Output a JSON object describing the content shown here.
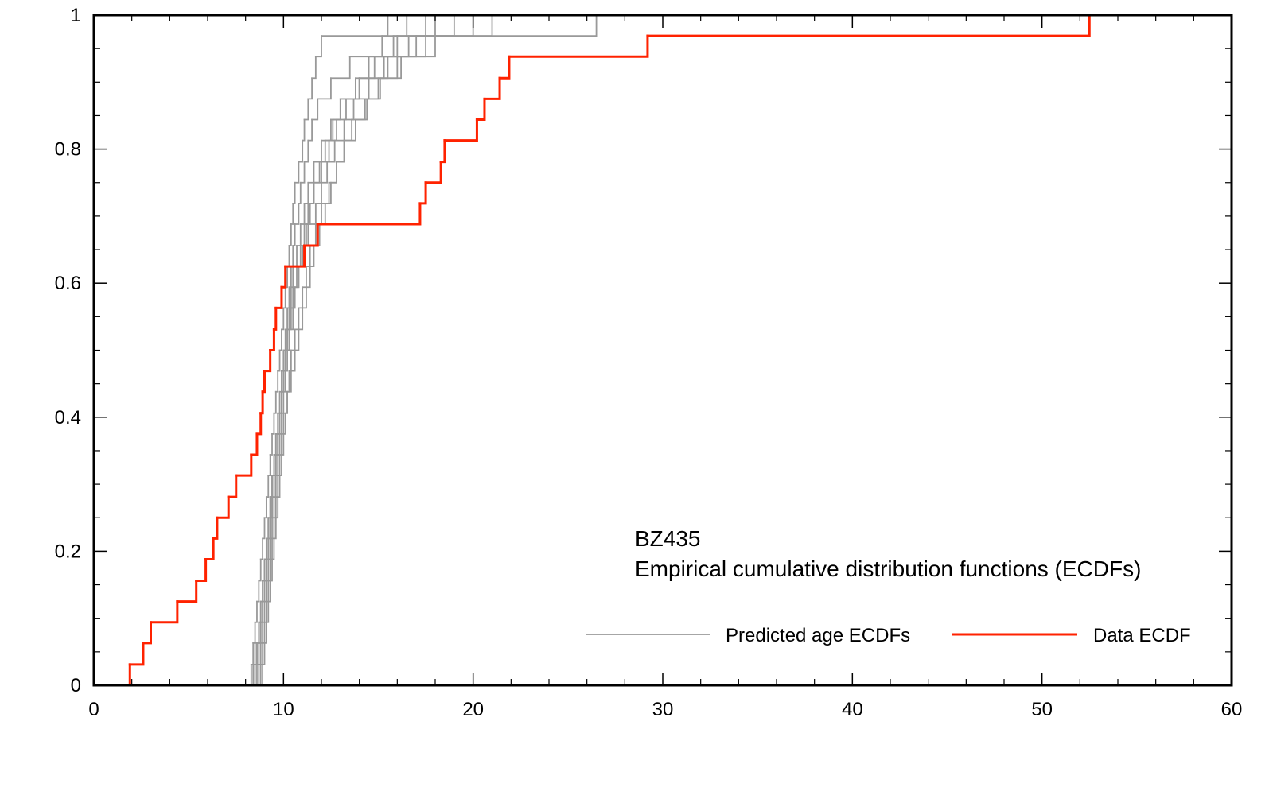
{
  "chart_data": {
    "type": "ecdf",
    "annotations": [
      "BZ435",
      "Empirical cumulative distribution functions (ECDFs)"
    ],
    "xlim": [
      0,
      60
    ],
    "xticks": [
      0,
      10,
      20,
      30,
      40,
      50,
      60
    ],
    "ylim": [
      0,
      1
    ],
    "yticks": [
      0,
      0.2,
      0.4,
      0.6,
      0.8,
      1
    ],
    "minor_ticks": {
      "x": 5,
      "y": 4
    },
    "legend": "lower right",
    "series": [
      {
        "name": "Predicted age ECDFs",
        "color": "#999999",
        "curves": [
          {
            "x": [
              8.3,
              8.4,
              8.5,
              8.6,
              8.7,
              8.8,
              8.9,
              9.0,
              9.1,
              9.2,
              9.3,
              9.4,
              9.5,
              9.6,
              9.7,
              9.8,
              9.9,
              10.0,
              10.1,
              10.2,
              10.3,
              10.4,
              10.5,
              10.6,
              10.8,
              11.0,
              11.1,
              11.3,
              11.5,
              11.7,
              12.0,
              15.5
            ],
            "values": [
              0.031,
              0.063,
              0.094,
              0.125,
              0.156,
              0.188,
              0.219,
              0.25,
              0.281,
              0.313,
              0.344,
              0.375,
              0.406,
              0.438,
              0.469,
              0.5,
              0.531,
              0.563,
              0.594,
              0.625,
              0.656,
              0.688,
              0.719,
              0.75,
              0.781,
              0.813,
              0.844,
              0.875,
              0.906,
              0.938,
              0.969,
              1
            ]
          },
          {
            "x": [
              8.4,
              8.5,
              8.7,
              8.8,
              8.9,
              9.0,
              9.1,
              9.2,
              9.3,
              9.4,
              9.5,
              9.6,
              9.7,
              9.8,
              9.9,
              10.0,
              10.1,
              10.2,
              10.3,
              10.4,
              10.5,
              10.6,
              10.8,
              10.9,
              11.1,
              11.3,
              11.5,
              11.8,
              12.5,
              13.5,
              15.2,
              16.5
            ],
            "values": [
              0.031,
              0.063,
              0.094,
              0.125,
              0.156,
              0.188,
              0.219,
              0.25,
              0.281,
              0.313,
              0.344,
              0.375,
              0.406,
              0.438,
              0.469,
              0.5,
              0.531,
              0.563,
              0.594,
              0.625,
              0.656,
              0.688,
              0.719,
              0.75,
              0.781,
              0.813,
              0.844,
              0.875,
              0.906,
              0.938,
              0.969,
              1
            ]
          },
          {
            "x": [
              8.5,
              8.6,
              8.7,
              8.8,
              8.9,
              9.0,
              9.1,
              9.2,
              9.3,
              9.4,
              9.5,
              9.6,
              9.8,
              9.9,
              10.0,
              10.1,
              10.3,
              10.4,
              10.6,
              10.8,
              11.0,
              11.2,
              11.4,
              11.6,
              11.9,
              12.2,
              12.6,
              13.0,
              13.8,
              14.5,
              16.0,
              19.0
            ],
            "values": [
              0.031,
              0.063,
              0.094,
              0.125,
              0.156,
              0.188,
              0.219,
              0.25,
              0.281,
              0.313,
              0.344,
              0.375,
              0.406,
              0.438,
              0.469,
              0.5,
              0.531,
              0.563,
              0.594,
              0.625,
              0.656,
              0.688,
              0.719,
              0.75,
              0.781,
              0.813,
              0.844,
              0.875,
              0.906,
              0.938,
              0.969,
              1
            ]
          },
          {
            "x": [
              8.6,
              8.7,
              8.8,
              8.9,
              9.0,
              9.1,
              9.2,
              9.3,
              9.4,
              9.5,
              9.6,
              9.7,
              9.8,
              9.9,
              10.0,
              10.1,
              10.2,
              10.3,
              10.5,
              10.7,
              10.9,
              11.1,
              11.3,
              11.6,
              12.0,
              12.4,
              12.8,
              13.3,
              14.0,
              14.8,
              15.8,
              17.5
            ],
            "values": [
              0.031,
              0.063,
              0.094,
              0.125,
              0.156,
              0.188,
              0.219,
              0.25,
              0.281,
              0.313,
              0.344,
              0.375,
              0.406,
              0.438,
              0.469,
              0.5,
              0.531,
              0.563,
              0.594,
              0.625,
              0.656,
              0.688,
              0.719,
              0.75,
              0.781,
              0.813,
              0.844,
              0.875,
              0.906,
              0.938,
              0.969,
              1
            ]
          },
          {
            "x": [
              8.7,
              8.8,
              8.9,
              9.0,
              9.1,
              9.2,
              9.3,
              9.4,
              9.5,
              9.6,
              9.7,
              9.8,
              9.9,
              10.0,
              10.1,
              10.2,
              10.3,
              10.5,
              10.6,
              10.8,
              11.0,
              11.3,
              11.7,
              12.0,
              12.3,
              12.7,
              13.2,
              13.7,
              14.5,
              15.3,
              16.6,
              18.0
            ],
            "values": [
              0.031,
              0.063,
              0.094,
              0.125,
              0.156,
              0.188,
              0.219,
              0.25,
              0.281,
              0.313,
              0.344,
              0.375,
              0.406,
              0.438,
              0.469,
              0.5,
              0.531,
              0.563,
              0.594,
              0.625,
              0.656,
              0.688,
              0.719,
              0.75,
              0.781,
              0.813,
              0.844,
              0.875,
              0.906,
              0.938,
              0.969,
              1
            ]
          },
          {
            "x": [
              8.8,
              8.9,
              9.0,
              9.1,
              9.2,
              9.3,
              9.4,
              9.5,
              9.6,
              9.7,
              9.8,
              9.9,
              10.0,
              10.2,
              10.4,
              10.6,
              10.8,
              11.0,
              11.2,
              11.4,
              11.6,
              11.9,
              12.2,
              12.5,
              12.8,
              13.2,
              13.6,
              14.3,
              15.0,
              16.2,
              18.0,
              20.0
            ],
            "values": [
              0.031,
              0.063,
              0.094,
              0.125,
              0.156,
              0.188,
              0.219,
              0.25,
              0.281,
              0.313,
              0.344,
              0.375,
              0.406,
              0.438,
              0.469,
              0.5,
              0.531,
              0.563,
              0.594,
              0.625,
              0.656,
              0.688,
              0.719,
              0.75,
              0.781,
              0.813,
              0.844,
              0.875,
              0.906,
              0.938,
              0.969,
              1
            ]
          },
          {
            "x": [
              8.9,
              9.0,
              9.1,
              9.2,
              9.3,
              9.4,
              9.5,
              9.6,
              9.7,
              9.8,
              9.9,
              10.0,
              10.1,
              10.2,
              10.3,
              10.4,
              10.6,
              10.8,
              11.0,
              11.2,
              11.4,
              11.7,
              12.0,
              12.4,
              12.8,
              13.2,
              13.8,
              14.4,
              15.1,
              16.0,
              17.5,
              21.0
            ],
            "values": [
              0.031,
              0.063,
              0.094,
              0.125,
              0.156,
              0.188,
              0.219,
              0.25,
              0.281,
              0.313,
              0.344,
              0.375,
              0.406,
              0.438,
              0.469,
              0.5,
              0.531,
              0.563,
              0.594,
              0.625,
              0.656,
              0.688,
              0.719,
              0.75,
              0.781,
              0.813,
              0.844,
              0.875,
              0.906,
              0.938,
              0.969,
              1
            ]
          },
          {
            "x": [
              8.5,
              8.6,
              8.8,
              8.9,
              9.0,
              9.1,
              9.2,
              9.3,
              9.4,
              9.5,
              9.6,
              9.7,
              9.8,
              9.9,
              10.0,
              10.1,
              10.2,
              10.3,
              10.4,
              10.5,
              10.7,
              10.9,
              11.1,
              11.3,
              11.6,
              12.0,
              12.5,
              13.0,
              14.0,
              15.5,
              17.0,
              26.5
            ],
            "values": [
              0.031,
              0.063,
              0.094,
              0.125,
              0.156,
              0.188,
              0.219,
              0.25,
              0.281,
              0.313,
              0.344,
              0.375,
              0.406,
              0.438,
              0.469,
              0.5,
              0.531,
              0.563,
              0.594,
              0.625,
              0.656,
              0.688,
              0.719,
              0.75,
              0.781,
              0.813,
              0.844,
              0.875,
              0.906,
              0.938,
              0.969,
              1
            ]
          }
        ]
      },
      {
        "name": "Data ECDF",
        "color": "#ff2200",
        "x": [
          1.9,
          2.6,
          3.0,
          4.4,
          5.4,
          5.9,
          6.3,
          6.5,
          7.1,
          7.5,
          8.3,
          8.6,
          8.8,
          8.9,
          9.0,
          9.3,
          9.5,
          9.6,
          9.9,
          10.1,
          11.1,
          11.8,
          17.2,
          17.5,
          18.3,
          18.5,
          20.2,
          20.6,
          21.4,
          21.9,
          29.2,
          52.5
        ],
        "values": [
          0.031,
          0.063,
          0.094,
          0.125,
          0.156,
          0.188,
          0.219,
          0.25,
          0.281,
          0.313,
          0.344,
          0.375,
          0.406,
          0.438,
          0.469,
          0.5,
          0.531,
          0.563,
          0.594,
          0.625,
          0.656,
          0.688,
          0.719,
          0.75,
          0.781,
          0.813,
          0.844,
          0.875,
          0.906,
          0.938,
          0.969,
          1
        ]
      }
    ]
  }
}
